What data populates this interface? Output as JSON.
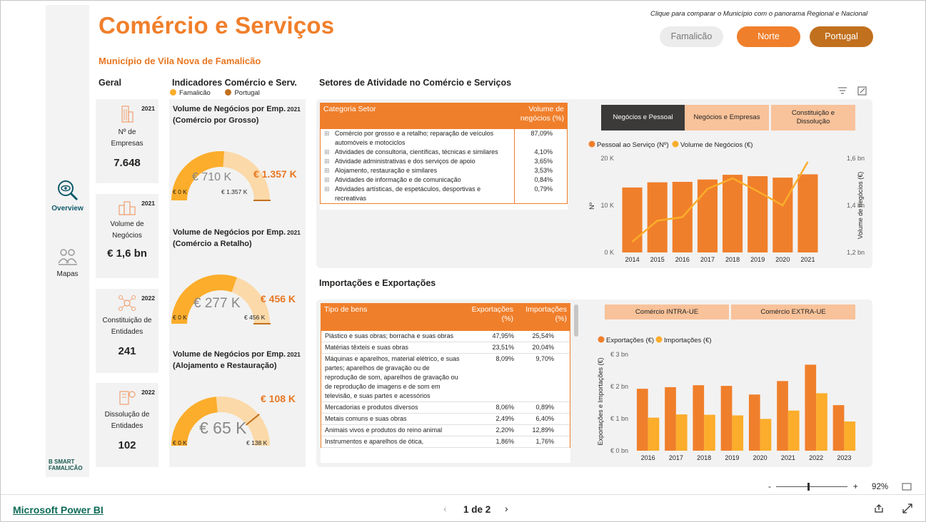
{
  "header": {
    "title": "Comércio e Serviços",
    "subtitle": "Município de Vila Nova de Famalicão",
    "hint": "Clique para comparar o Município com o panorama Regional e Nacional",
    "buttons": [
      "Famalicão",
      "Norte",
      "Portugal"
    ]
  },
  "nav": {
    "items": [
      {
        "label": "Overview"
      },
      {
        "label": "Mapas"
      }
    ],
    "logo_text": "B SMART FAMALICÃO"
  },
  "geral": {
    "title": "Geral",
    "cards": [
      {
        "year": "2021",
        "label": "Nº de Empresas",
        "value": "7.648"
      },
      {
        "year": "2021",
        "label": "Volume de Negócios",
        "value": "€ 1,6 bn"
      },
      {
        "year": "2022",
        "label": "Constituição de Entidades",
        "value": "241"
      },
      {
        "year": "2022",
        "label": "Dissolução de Entidades",
        "value": "102"
      }
    ]
  },
  "indicadores": {
    "title": "Indicadores Comércio e Serv.",
    "legend": [
      "Famalicão",
      "Portugal"
    ],
    "gauges": [
      {
        "title": "Volume de Negócios por Emp. (Comércio por Grosso)",
        "year": "2021",
        "value_label": "€ 710 K",
        "target_label": "€ 1.357 K",
        "min_label": "€ 0 K",
        "max_label": "€ 1.357 K",
        "value": 710,
        "target": 1357,
        "max": 1357
      },
      {
        "title": "Volume de Negócios por Emp. (Comércio a Retalho)",
        "year": "2021",
        "value_label": "€ 277 K",
        "target_label": "€ 456 K",
        "min_label": "€ 0 K",
        "max_label": "€ 456 K",
        "value": 277,
        "target": 456,
        "max": 456
      },
      {
        "title": "Volume de Negócios por Emp. (Alojamento e Restauração)",
        "year": "2021",
        "value_label": "€ 65 K",
        "target_label": "€ 108 K",
        "min_label": "€ 0 K",
        "max_label": "€ 138 K",
        "value": 65,
        "target": 108,
        "max": 138
      }
    ]
  },
  "setores": {
    "title": "Setores de Atividade no Comércio e Serviços",
    "table_headers": [
      "Categoria Setor",
      "Volume de negócios (%)"
    ],
    "rows": [
      {
        "name": "Comércio por grosso e a retalho; reparação de veículos automóveis e motociclos",
        "value": "87,09%"
      },
      {
        "name": "Atividades de consultoria, científicas, técnicas e similares",
        "value": "4,10%"
      },
      {
        "name": "Atividade administrativas e dos serviços de apoio",
        "value": "3,65%"
      },
      {
        "name": "Alojamento, restauração e similares",
        "value": "3,53%"
      },
      {
        "name": "Atividades de informação e de comunicação",
        "value": "0,84%"
      },
      {
        "name": "Atividades artísticas, de espetáculos, desportivas e recreativas",
        "value": "0,79%"
      }
    ],
    "tabs": [
      "Negócios e Pessoal",
      "Negócios e Empresas",
      "Constituição e Dissolução"
    ]
  },
  "importexport": {
    "title": "Importações e Exportações",
    "table_headers": [
      "Tipo de bens",
      "Exportações (%)",
      "Importações (%)"
    ],
    "rows": [
      {
        "name": "Plástico e suas obras; borracha e suas obras",
        "exp": "47,95%",
        "imp": "25,54%"
      },
      {
        "name": "Matérias têxteis e suas obras",
        "exp": "23,51%",
        "imp": "20,04%"
      },
      {
        "name": "Máquinas e aparelhos, material elétrico, e suas partes; aparelhos de gravação ou de reprodução de som, aparelhos de gravação ou de reprodução de imagens e de som em televisão, e suas partes e acessórios",
        "exp": "8,09%",
        "imp": "9,70%"
      },
      {
        "name": "Mercadorias e produtos diversos",
        "exp": "8,06%",
        "imp": "0,89%"
      },
      {
        "name": "Metais comuns e suas obras",
        "exp": "2,49%",
        "imp": "6,40%"
      },
      {
        "name": "Animais vivos e produtos do reino animal",
        "exp": "2,20%",
        "imp": "12,89%"
      },
      {
        "name": "Instrumentos e aparelhos de ótica,",
        "exp": "1,86%",
        "imp": "1,76%"
      }
    ],
    "tabs": [
      "Comércio INTRA-UE",
      "Comércio EXTRA-UE"
    ]
  },
  "colors": {
    "accent": "#f07f2b",
    "dark_orange": "#e87722",
    "light": "#fbd9a8",
    "gold": "#fbad2b",
    "portugal": "#c1701e"
  },
  "chart_data": [
    {
      "type": "bar",
      "categories": [
        "2014",
        "2015",
        "2016",
        "2017",
        "2018",
        "2019",
        "2020",
        "2021"
      ],
      "series": [
        {
          "name": "Pessoal ao Serviço (Nº)",
          "type": "bar",
          "axis": "left",
          "values": [
            13800,
            14900,
            15000,
            15500,
            16500,
            16200,
            15900,
            16600
          ]
        },
        {
          "name": "Volume de Negócios (€)",
          "type": "line",
          "axis": "right",
          "values": [
            1.245,
            1.335,
            1.35,
            1.47,
            1.515,
            1.46,
            1.4,
            1.585
          ]
        }
      ],
      "ylabel": "Nº",
      "ylabel_right": "Volume de negócios (€)",
      "ylim": [
        0,
        20000
      ],
      "ylim_right": [
        1.2,
        1.6
      ],
      "yticks": [
        "0 K",
        "10 K",
        "20 K"
      ],
      "yticks_right": [
        "1,2 bn",
        "1,4 bn",
        "1,6 bn"
      ],
      "legend": "top-left"
    },
    {
      "type": "bar",
      "categories": [
        "2016",
        "2017",
        "2018",
        "2019",
        "2020",
        "2021",
        "2022",
        "2023"
      ],
      "series": [
        {
          "name": "Exportações (€)",
          "values": [
            1.93,
            1.98,
            2.04,
            2.02,
            1.75,
            2.17,
            2.68,
            1.42
          ]
        },
        {
          "name": "Importações (€)",
          "values": [
            1.03,
            1.13,
            1.12,
            1.1,
            0.99,
            1.25,
            1.79,
            0.91
          ]
        }
      ],
      "ylabel": "Exportações e Importações (€)",
      "ylim": [
        0,
        3
      ],
      "yticks": [
        "€ 0 bn",
        "€ 1 bn",
        "€ 2 bn",
        "€ 3 bn"
      ],
      "legend": "top-left"
    }
  ],
  "footer": {
    "powerbi": "Microsoft Power BI",
    "page": "1 de 2",
    "zoom": "92%"
  }
}
